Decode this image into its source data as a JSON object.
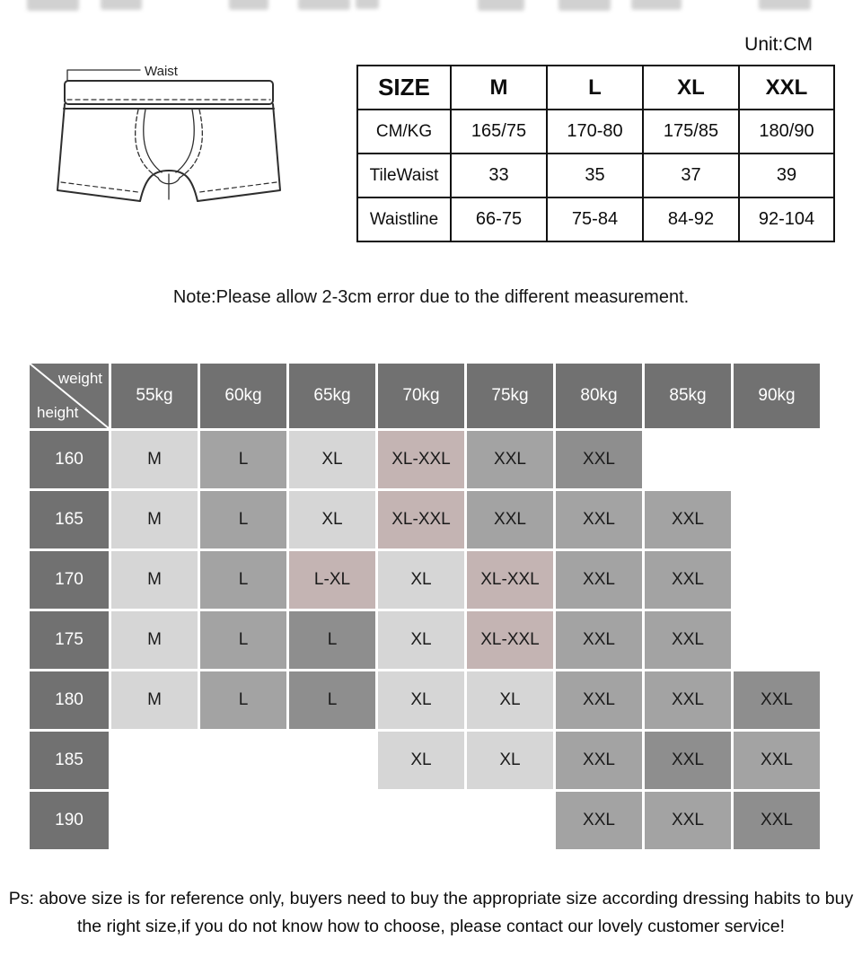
{
  "page": {
    "unit_label": "Unit:CM"
  },
  "diagram": {
    "label": "Waist"
  },
  "size_table": {
    "header": [
      "SIZE",
      "M",
      "L",
      "XL",
      "XXL"
    ],
    "rows": [
      {
        "label": "CM/KG",
        "values": [
          "165/75",
          "170-80",
          "175/85",
          "180/90"
        ]
      },
      {
        "label": "TileWaist",
        "values": [
          "33",
          "35",
          "37",
          "39"
        ]
      },
      {
        "label": "Waistline",
        "values": [
          "66-75",
          "75-84",
          "84-92",
          "92-104"
        ]
      }
    ]
  },
  "note": "Note:Please allow 2-3cm error due to the different measurement.",
  "matrix": {
    "corner": {
      "top": "weight",
      "bottom": "height"
    },
    "weights": [
      "55kg",
      "60kg",
      "65kg",
      "70kg",
      "75kg",
      "80kg",
      "85kg",
      "90kg"
    ],
    "rows": [
      {
        "height": "160",
        "cells": [
          [
            "M",
            "light"
          ],
          [
            "L",
            "mid"
          ],
          [
            "XL",
            "light"
          ],
          [
            "XL-XXL",
            "pink"
          ],
          [
            "XXL",
            "mid"
          ],
          [
            "XXL",
            "dark"
          ],
          [
            "",
            "blank"
          ],
          [
            "",
            "blank"
          ]
        ]
      },
      {
        "height": "165",
        "cells": [
          [
            "M",
            "light"
          ],
          [
            "L",
            "mid"
          ],
          [
            "XL",
            "light"
          ],
          [
            "XL-XXL",
            "pink"
          ],
          [
            "XXL",
            "mid"
          ],
          [
            "XXL",
            "mid"
          ],
          [
            "XXL",
            "mid"
          ],
          [
            "",
            "blank"
          ]
        ]
      },
      {
        "height": "170",
        "cells": [
          [
            "M",
            "light"
          ],
          [
            "L",
            "mid"
          ],
          [
            "L-XL",
            "pink"
          ],
          [
            "XL",
            "light"
          ],
          [
            "XL-XXL",
            "pink"
          ],
          [
            "XXL",
            "mid"
          ],
          [
            "XXL",
            "mid"
          ],
          [
            "",
            "blank"
          ]
        ]
      },
      {
        "height": "175",
        "cells": [
          [
            "M",
            "light"
          ],
          [
            "L",
            "mid"
          ],
          [
            "L",
            "dark"
          ],
          [
            "XL",
            "light"
          ],
          [
            "XL-XXL",
            "pink"
          ],
          [
            "XXL",
            "mid"
          ],
          [
            "XXL",
            "mid"
          ],
          [
            "",
            "blank"
          ]
        ]
      },
      {
        "height": "180",
        "cells": [
          [
            "M",
            "light"
          ],
          [
            "L",
            "mid"
          ],
          [
            "L",
            "dark"
          ],
          [
            "XL",
            "light"
          ],
          [
            "XL",
            "light"
          ],
          [
            "XXL",
            "mid"
          ],
          [
            "XXL",
            "mid"
          ],
          [
            "XXL",
            "dark"
          ]
        ]
      },
      {
        "height": "185",
        "cells": [
          [
            "",
            "blank"
          ],
          [
            "",
            "blank"
          ],
          [
            "",
            "blank"
          ],
          [
            "XL",
            "light"
          ],
          [
            "XL",
            "light"
          ],
          [
            "XXL",
            "mid"
          ],
          [
            "XXL",
            "dark"
          ],
          [
            "XXL",
            "mid"
          ]
        ]
      },
      {
        "height": "190",
        "cells": [
          [
            "",
            "blank"
          ],
          [
            "",
            "blank"
          ],
          [
            "",
            "blank"
          ],
          [
            "",
            "blank"
          ],
          [
            "",
            "blank"
          ],
          [
            "XXL",
            "mid"
          ],
          [
            "XXL",
            "mid"
          ],
          [
            "XXL",
            "dark"
          ]
        ]
      }
    ]
  },
  "footer": {
    "lines": [
      "Ps: above size is for reference only, buyers need to buy the appropriate size according dressing habits to buy",
      "the right size,if you do not know how to choose, please contact our lovely customer service!"
    ]
  },
  "colors": {
    "header_bg": "#717171",
    "light": "#d6d6d6",
    "mid": "#a3a3a3",
    "dark": "#8e8e8e",
    "pink": "#c4b4b3",
    "blank": "#ffffff",
    "table_border": "#111111"
  }
}
